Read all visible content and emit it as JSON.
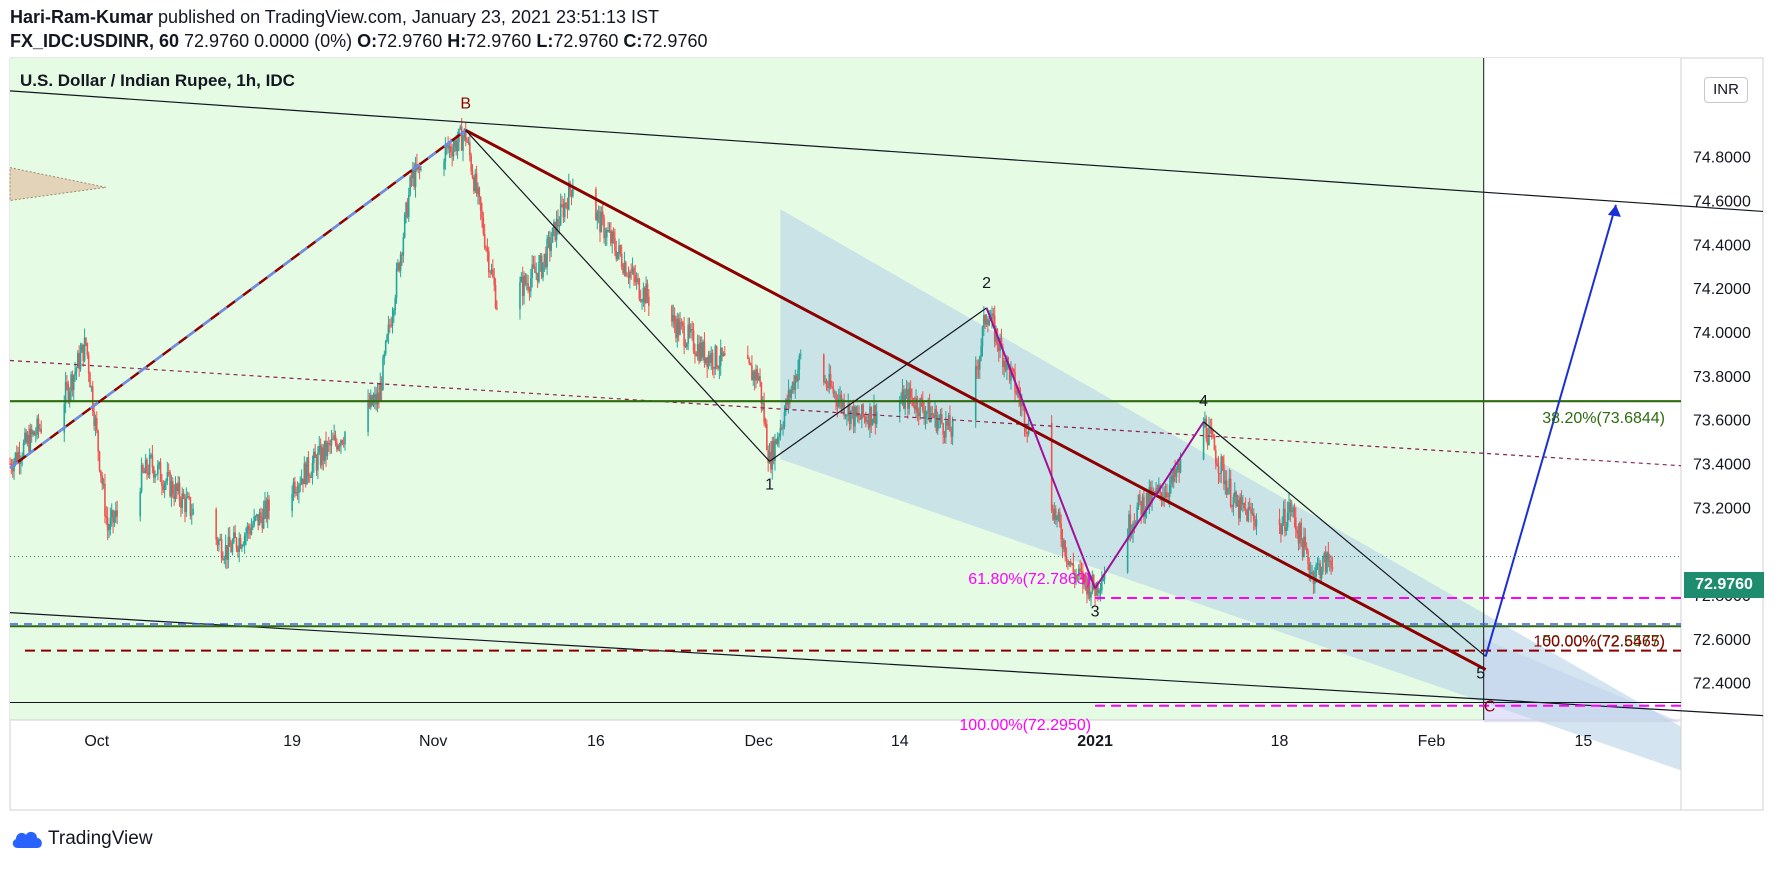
{
  "header": {
    "author": "Hari-Ram-Kumar",
    "published": " published on TradingView.com, January 23, 2021 23:51:13 IST",
    "symbol": "FX_IDC:USDINR, 60",
    "last": " 72.9760 0.0000 (0%) ",
    "o_label": "O:",
    "o_value": "72.9760 ",
    "h_label": "H:",
    "h_value": "72.9760 ",
    "l_label": "L:",
    "l_value": "72.9760 ",
    "c_label": "C:",
    "c_value": "72.9760"
  },
  "footer": {
    "brand": "TradingView"
  },
  "currency_badge": "INR",
  "price_badge": "72.9760",
  "colors": {
    "bg_green": "#e6fbe4",
    "channel_fill": "#b7d3e8",
    "projection_fill": "#dcdcfa",
    "candle_up": "#26a69a",
    "candle_down": "#ef5350",
    "trend_red": "#8b0000",
    "fib_green": "#2e6b0e",
    "fib_magenta": "#ff00ff",
    "projection_blue": "#1a2fd6"
  },
  "chart_data": {
    "type": "candlestick",
    "title": "U.S. Dollar / Indian Rupee, 1h, IDC",
    "ylim": [
      72.23,
      75.25
    ],
    "y_ticks": [
      {
        "value": 74.8,
        "label": "74.8000"
      },
      {
        "value": 74.6,
        "label": "74.6000"
      },
      {
        "value": 74.4,
        "label": "74.4000"
      },
      {
        "value": 74.2,
        "label": "74.2000"
      },
      {
        "value": 74.0,
        "label": "74.0000"
      },
      {
        "value": 73.8,
        "label": "73.8000"
      },
      {
        "value": 73.6,
        "label": "73.6000"
      },
      {
        "value": 73.4,
        "label": "73.4000"
      },
      {
        "value": 73.2,
        "label": "73.2000"
      },
      {
        "value": 72.8,
        "label": "72.8000"
      },
      {
        "value": 72.6,
        "label": "72.6000"
      },
      {
        "value": 72.4,
        "label": "72.4000"
      }
    ],
    "x_range": [
      "2020-09-23",
      "2021-02-24"
    ],
    "x_ticks": [
      {
        "date": "2020-10-01",
        "label": "Oct"
      },
      {
        "date": "2020-10-19",
        "label": "19"
      },
      {
        "date": "2020-11-01",
        "label": "Nov"
      },
      {
        "date": "2020-11-16",
        "label": "16"
      },
      {
        "date": "2020-12-01",
        "label": "Dec"
      },
      {
        "date": "2020-12-14",
        "label": "14"
      },
      {
        "date": "2021-01-01",
        "label": "2021"
      },
      {
        "date": "2021-01-18",
        "label": "18"
      },
      {
        "date": "2021-02-01",
        "label": "Feb"
      },
      {
        "date": "2021-02-15",
        "label": "15"
      }
    ],
    "last_price": 72.976,
    "price_path": [
      {
        "date": "2020-09-23",
        "price": 73.4
      },
      {
        "date": "2020-09-28",
        "price": 73.7
      },
      {
        "date": "2020-09-30",
        "price": 73.95
      },
      {
        "date": "2020-10-02",
        "price": 73.1
      },
      {
        "date": "2020-10-06",
        "price": 73.4
      },
      {
        "date": "2020-10-13",
        "price": 73.0
      },
      {
        "date": "2020-10-19",
        "price": 73.3
      },
      {
        "date": "2020-10-27",
        "price": 73.7
      },
      {
        "date": "2020-10-30",
        "price": 74.7
      },
      {
        "date": "2020-11-04",
        "price": 74.9
      },
      {
        "date": "2020-11-07",
        "price": 74.1
      },
      {
        "date": "2020-11-11",
        "price": 74.3
      },
      {
        "date": "2020-11-14",
        "price": 74.7
      },
      {
        "date": "2020-11-20",
        "price": 74.2
      },
      {
        "date": "2020-11-26",
        "price": 73.9
      },
      {
        "date": "2020-12-01",
        "price": 73.8
      },
      {
        "date": "2020-12-02",
        "price": 73.41
      },
      {
        "date": "2020-12-05",
        "price": 73.9
      },
      {
        "date": "2020-12-10",
        "price": 73.6
      },
      {
        "date": "2020-12-15",
        "price": 73.7
      },
      {
        "date": "2020-12-20",
        "price": 73.5
      },
      {
        "date": "2020-12-22",
        "price": 74.1
      },
      {
        "date": "2020-12-25",
        "price": 73.7
      },
      {
        "date": "2020-12-30",
        "price": 72.9
      },
      {
        "date": "2021-01-01",
        "price": 72.83
      },
      {
        "date": "2021-01-05",
        "price": 73.2
      },
      {
        "date": "2021-01-08",
        "price": 73.3
      },
      {
        "date": "2021-01-11",
        "price": 73.59
      },
      {
        "date": "2021-01-14",
        "price": 73.2
      },
      {
        "date": "2021-01-18",
        "price": 73.1
      },
      {
        "date": "2021-01-19",
        "price": 73.2
      },
      {
        "date": "2021-01-21",
        "price": 72.9
      },
      {
        "date": "2021-01-23",
        "price": 72.976
      }
    ],
    "annotations": {
      "points": [
        {
          "label": "B",
          "date": "2020-11-04",
          "price": 74.92
        },
        {
          "label": "1",
          "date": "2020-12-02",
          "price": 73.41
        },
        {
          "label": "2",
          "date": "2020-12-22",
          "price": 74.11
        },
        {
          "label": "3",
          "date": "2021-01-01",
          "price": 72.83
        },
        {
          "label": "4",
          "date": "2021-01-11",
          "price": 73.59
        },
        {
          "label": "5",
          "date": "2021-02-06",
          "price": 72.52
        },
        {
          "label": "C",
          "date": "2021-02-06",
          "price": 72.46
        }
      ],
      "fib_levels": [
        {
          "label": "38.20%(73.6844)",
          "price": 73.6844
        },
        {
          "label": "61.80%(72.7863)",
          "price": 72.7863
        },
        {
          "label": "50.00%(72.6577)",
          "price": 72.6577
        },
        {
          "label": "100.00%(72.5465)",
          "price": 72.5465
        },
        {
          "label": "100.00%(72.2950)",
          "price": 72.295
        }
      ],
      "projection_target": {
        "date": "2021-02-18",
        "price": 74.58
      }
    }
  }
}
